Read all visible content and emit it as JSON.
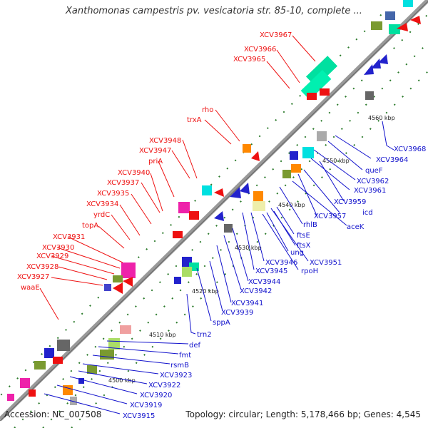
{
  "title": "Xanthomonas campestris pv. vesicatoria str. 85-10, complete ...",
  "footer": {
    "accession": "Accession: NC_007508",
    "summary": "Topology: circular; Length: 5,178,466 bp; Genes: 4,545"
  },
  "kbp_labels": [
    "4500 kbp",
    "4510 kbp",
    "4520 kbp",
    "4530 kbp",
    "4540 kbp",
    "4550 kbp",
    "4560 kbp"
  ],
  "red_labels": [
    "XCV3967",
    "XCV3966",
    "XCV3965",
    "rho",
    "trxA",
    "XCV3948",
    "XCV3947",
    "priA",
    "XCV3940",
    "XCV3937",
    "XCV3935",
    "XCV3934",
    "yrdC",
    "topA",
    "XCV3931",
    "XCV3930",
    "XCV3929",
    "XCV3928",
    "XCV3927",
    "waaE"
  ],
  "blue_labels": [
    "XCV3968",
    "XCV3964",
    "queF",
    "XCV3962",
    "XCV3961",
    "icd",
    "XCV3959",
    "XCV3957",
    "aceK",
    "rhlB",
    "ftsE",
    "ftsX",
    "ung",
    "XCV3951",
    "rpoH",
    "XCV3946",
    "XCV3945",
    "XCV3944",
    "XCV3942",
    "XCV3941",
    "XCV3939",
    "sppA",
    "trn2",
    "def",
    "fmt",
    "rsmB",
    "XCV3923",
    "XCV3922",
    "XCV3920",
    "XCV3919",
    "XCV3915"
  ],
  "colors": {
    "backbone": "#999999",
    "label_red": "#ee1111",
    "label_blue": "#1111cc",
    "tick_green": "#2a7a2a"
  }
}
